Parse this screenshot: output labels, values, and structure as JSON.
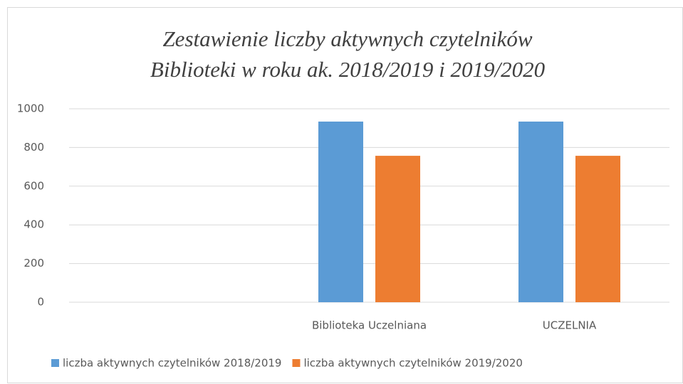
{
  "chart_data": {
    "type": "bar",
    "title": [
      "Zestawienie liczby aktywnych czytelników",
      "Biblioteki w roku ak. 2018/2019 i 2019/2020"
    ],
    "categories": [
      null,
      "Biblioteka Uczelniana",
      "UCZELNIA"
    ],
    "series": [
      {
        "name": "liczba aktywnych czytelników 2018/2019",
        "color": "#5b9bd5",
        "values": [
          null,
          934,
          934
        ]
      },
      {
        "name": "liczba aktywnych czytelników 2019/2020",
        "color": "#ed7d31",
        "values": [
          null,
          757,
          757
        ]
      }
    ],
    "ylim": [
      0,
      1000
    ],
    "yticks": [
      0,
      200,
      400,
      600,
      800,
      1000
    ],
    "grid": true,
    "legend": "bottom"
  }
}
